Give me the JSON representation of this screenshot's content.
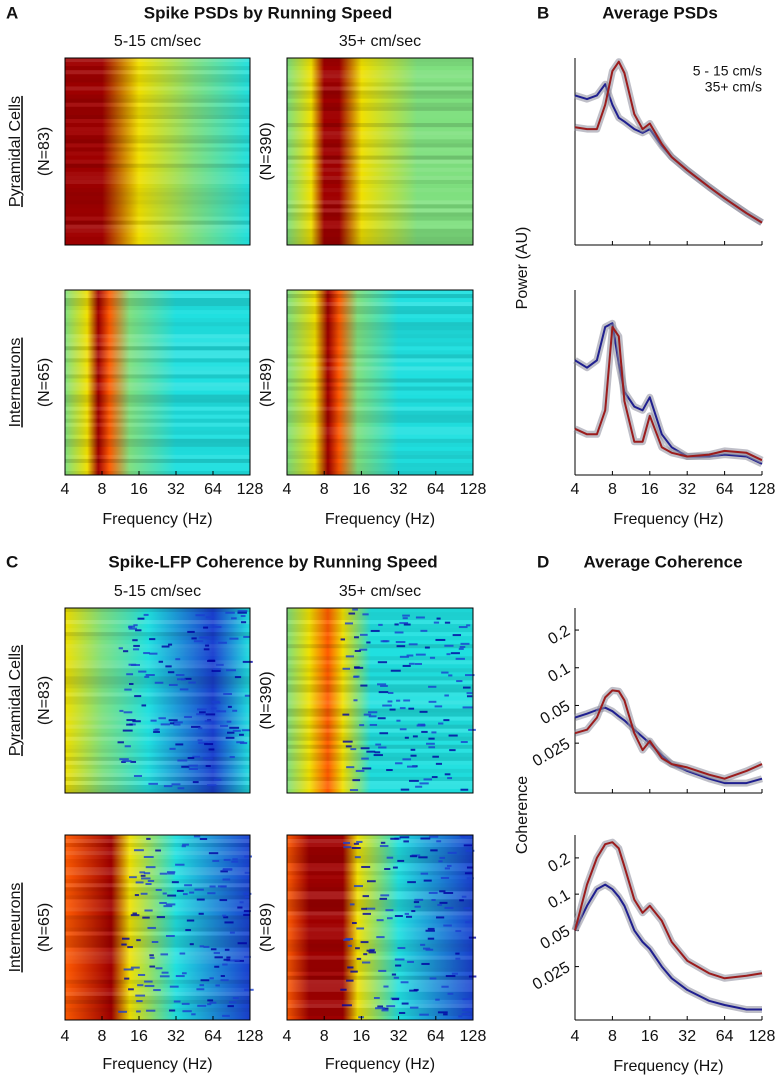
{
  "figure": {
    "A": {
      "letter": "A",
      "title": "Spike PSDs by Running Speed",
      "columns": [
        "5-15 cm/sec",
        "35+ cm/sec"
      ],
      "groups": [
        "Pyramidal Cells",
        "Interneurons"
      ],
      "counts": [
        [
          "(N=83)",
          "(N=390)"
        ],
        [
          "(N=65)",
          "(N=89)"
        ]
      ],
      "xlim": [
        4,
        128
      ],
      "xticks": [
        4,
        8,
        16,
        32,
        64,
        128
      ],
      "xlabel": "Frequency (Hz)"
    },
    "B": {
      "letter": "B",
      "title": "Average PSDs"
    },
    "C": {
      "letter": "C",
      "title": "Spike-LFP Coherence by Running Speed",
      "columns": [
        "5-15 cm/sec",
        "35+ cm/sec"
      ],
      "groups": [
        "Pyramidal Cells",
        "Interneurons"
      ],
      "counts": [
        [
          "(N=83)",
          "(N=390)"
        ],
        [
          "(N=65)",
          "(N=89)"
        ]
      ],
      "xlim": [
        4,
        128
      ],
      "xticks": [
        4,
        8,
        16,
        32,
        64,
        128
      ],
      "xlabel": "Frequency (Hz)"
    },
    "D": {
      "letter": "D",
      "title": "Average Coherence"
    }
  },
  "chart_data": [
    {
      "type": "line",
      "xlog": true,
      "xlim": [
        4,
        128
      ],
      "xticks": [
        4,
        8,
        16,
        32,
        64,
        128
      ],
      "ylim": [
        0,
        1
      ],
      "legend": "upper right",
      "x": [
        4,
        5,
        6,
        7,
        8,
        9,
        10,
        12,
        14,
        16,
        20,
        24,
        32,
        48,
        64,
        96,
        128
      ],
      "series": [
        {
          "name": "5 - 15 cm/s",
          "color": "#1f1f8f",
          "values": [
            0.8,
            0.78,
            0.8,
            0.86,
            0.75,
            0.68,
            0.66,
            0.62,
            0.6,
            0.62,
            0.53,
            0.47,
            0.4,
            0.31,
            0.25,
            0.17,
            0.12
          ]
        },
        {
          "name": "35+ cm/s",
          "color": "#9b1c1c",
          "values": [
            0.63,
            0.62,
            0.62,
            0.75,
            0.93,
            0.98,
            0.92,
            0.7,
            0.62,
            0.65,
            0.54,
            0.47,
            0.4,
            0.31,
            0.25,
            0.17,
            0.12
          ]
        }
      ]
    },
    {
      "type": "line",
      "xlog": true,
      "xlim": [
        4,
        128
      ],
      "xticks": [
        4,
        8,
        16,
        32,
        64,
        128
      ],
      "ylim": [
        0,
        1
      ],
      "xlabel": "Frequency (Hz)",
      "ylabel": "Power (AU)",
      "x": [
        4,
        5,
        6,
        7,
        8,
        9,
        10,
        12,
        14,
        16,
        20,
        24,
        32,
        48,
        64,
        96,
        128
      ],
      "series": [
        {
          "color": "#1f1f8f",
          "values": [
            0.62,
            0.58,
            0.62,
            0.8,
            0.82,
            0.6,
            0.45,
            0.37,
            0.35,
            0.42,
            0.22,
            0.15,
            0.1,
            0.1,
            0.11,
            0.1,
            0.06
          ]
        },
        {
          "color": "#9b1c1c",
          "values": [
            0.25,
            0.22,
            0.22,
            0.35,
            0.8,
            0.75,
            0.4,
            0.18,
            0.18,
            0.32,
            0.15,
            0.12,
            0.1,
            0.11,
            0.13,
            0.12,
            0.08
          ]
        }
      ]
    },
    {
      "type": "line",
      "xlog": true,
      "ylog": true,
      "xlim": [
        4,
        128
      ],
      "xticks": [
        4,
        8,
        16,
        32,
        64,
        128
      ],
      "ylim": [
        0.01,
        0.3
      ],
      "yticks": [
        0.025,
        0.05,
        0.1,
        0.2
      ],
      "x": [
        4,
        5,
        6,
        7,
        8,
        9,
        10,
        12,
        14,
        16,
        20,
        24,
        32,
        48,
        64,
        96,
        128
      ],
      "series": [
        {
          "color": "#1f1f8f",
          "values": [
            0.04,
            0.043,
            0.046,
            0.048,
            0.045,
            0.041,
            0.038,
            0.032,
            0.028,
            0.025,
            0.02,
            0.017,
            0.015,
            0.013,
            0.012,
            0.012,
            0.013
          ]
        },
        {
          "color": "#9b1c1c",
          "values": [
            0.03,
            0.032,
            0.04,
            0.058,
            0.066,
            0.065,
            0.055,
            0.03,
            0.022,
            0.026,
            0.019,
            0.017,
            0.016,
            0.014,
            0.013,
            0.015,
            0.017
          ]
        }
      ]
    },
    {
      "type": "line",
      "xlog": true,
      "ylog": true,
      "xlim": [
        4,
        128
      ],
      "xticks": [
        4,
        8,
        16,
        32,
        64,
        128
      ],
      "ylim": [
        0.009,
        0.31
      ],
      "yticks": [
        0.025,
        0.05,
        0.1,
        0.2
      ],
      "xlabel": "Frequency (Hz)",
      "ylabel": "Coherence",
      "x": [
        4,
        5,
        6,
        7,
        8,
        9,
        10,
        12,
        14,
        16,
        20,
        24,
        32,
        48,
        64,
        96,
        128
      ],
      "series": [
        {
          "color": "#1f1f8f",
          "values": [
            0.05,
            0.08,
            0.11,
            0.12,
            0.11,
            0.095,
            0.08,
            0.05,
            0.04,
            0.035,
            0.025,
            0.02,
            0.016,
            0.013,
            0.012,
            0.011,
            0.011
          ]
        },
        {
          "color": "#9b1c1c",
          "values": [
            0.05,
            0.12,
            0.2,
            0.26,
            0.27,
            0.24,
            0.17,
            0.09,
            0.07,
            0.08,
            0.06,
            0.04,
            0.028,
            0.022,
            0.02,
            0.021,
            0.022
          ]
        }
      ]
    }
  ]
}
